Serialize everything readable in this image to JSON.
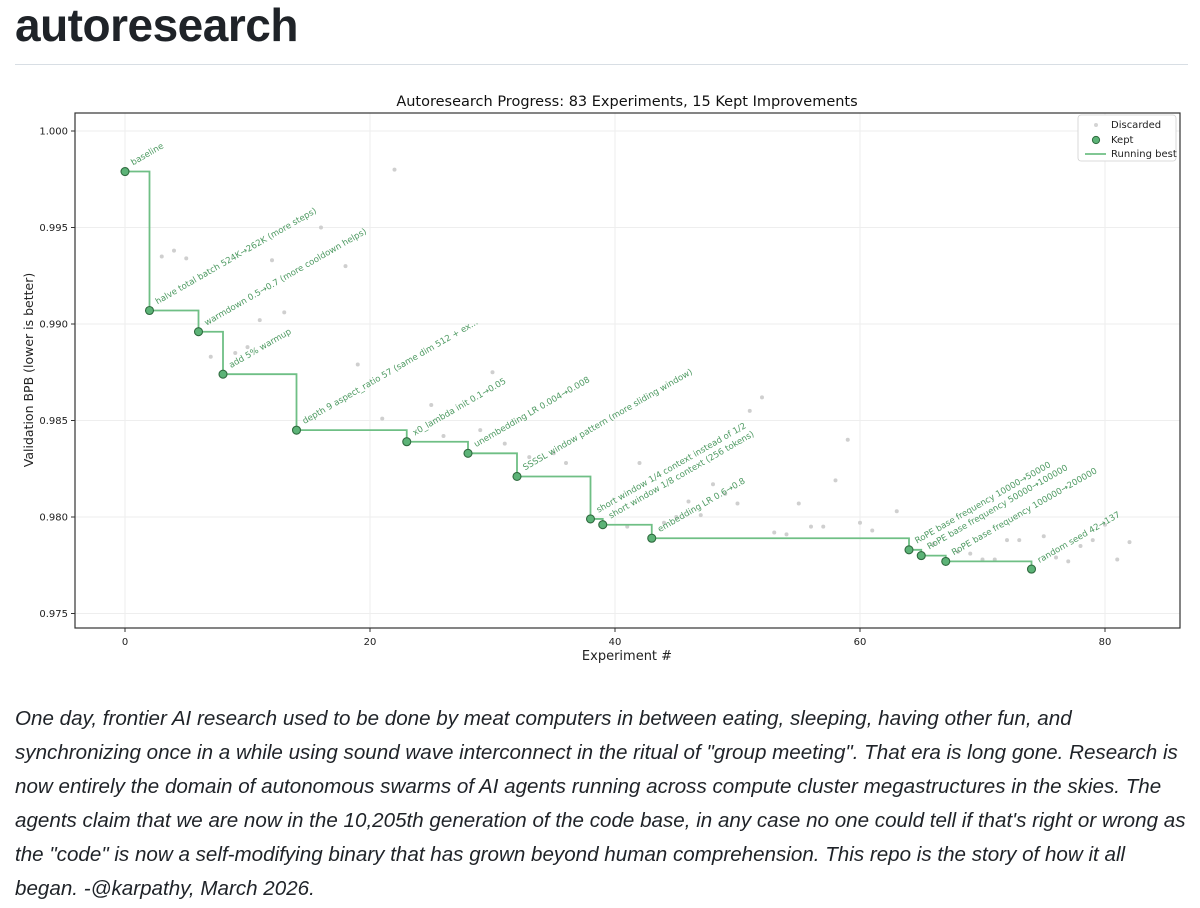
{
  "page": {
    "title": "autoresearch",
    "description": "One day, frontier AI research used to be done by meat computers in between eating, sleeping, having other fun, and synchronizing once in a while using sound wave interconnect in the ritual of \"group meeting\". That era is long gone. Research is now entirely the domain of autonomous swarms of AI agents running across compute cluster megastructures in the skies. The agents claim that we are now in the 10,205th generation of the code base, in any case no one could tell if that's right or wrong as the \"code\" is now a self-modifying binary that has grown beyond human comprehension. This repo is the story of how it all began. -@karpathy, March 2026."
  },
  "colors": {
    "kept": "#5cb377",
    "kept_edge": "#2f6b3f",
    "running_best": "#6fbf85",
    "discarded": "#cfcfcf",
    "annotation": "#4e9a62",
    "grid": "#eeeeee",
    "axis": "#333333"
  },
  "chart_data": {
    "type": "scatter",
    "title": "Autoresearch Progress: 83 Experiments, 15 Kept Improvements",
    "xlabel": "Experiment #",
    "ylabel": "Validation BPB (lower is better)",
    "xlim": [
      -4,
      86
    ],
    "ylim": [
      0.9743,
      1.0009
    ],
    "xticks": [
      0,
      20,
      40,
      60,
      80
    ],
    "xtick_labels": [
      "0",
      "20",
      "40",
      "60",
      "80"
    ],
    "yticks": [
      0.975,
      0.98,
      0.985,
      0.99,
      0.995,
      1.0
    ],
    "ytick_labels": [
      "0.975",
      "0.980",
      "0.985",
      "0.990",
      "0.995",
      "1.000"
    ],
    "grid": true,
    "legend": {
      "position": "upper right",
      "entries": [
        "Discarded",
        "Kept",
        "Running best"
      ]
    },
    "series": [
      {
        "name": "Kept",
        "points": [
          {
            "x": 0,
            "y": 0.9979,
            "label": "baseline"
          },
          {
            "x": 2,
            "y": 0.9907,
            "label": "halve total batch 524K→262K (more steps)"
          },
          {
            "x": 6,
            "y": 0.9896,
            "label": "warmdown 0.5→0.7 (more cooldown helps)"
          },
          {
            "x": 8,
            "y": 0.9874,
            "label": "add 5% warmup"
          },
          {
            "x": 14,
            "y": 0.9845,
            "label": "depth 9 aspect_ratio 57 (same dim 512 + ex..."
          },
          {
            "x": 23,
            "y": 0.9839,
            "label": "x0_lambda init 0.1→0.05"
          },
          {
            "x": 28,
            "y": 0.9833,
            "label": "unembedding LR 0.004→0.008"
          },
          {
            "x": 32,
            "y": 0.9821,
            "label": "SSSSL window pattern (more sliding window)"
          },
          {
            "x": 38,
            "y": 0.9799,
            "label": "short window 1/4 context instead of 1/2"
          },
          {
            "x": 39,
            "y": 0.9796,
            "label": "short window 1/8 context (256 tokens)"
          },
          {
            "x": 43,
            "y": 0.9789,
            "label": "embedding LR 0.6→0.8"
          },
          {
            "x": 64,
            "y": 0.9783,
            "label": "RoPE base frequency 10000→50000"
          },
          {
            "x": 65,
            "y": 0.978,
            "label": "RoPE base frequency 50000→100000"
          },
          {
            "x": 67,
            "y": 0.9777,
            "label": "RoPE base frequency 100000→200000"
          },
          {
            "x": 74,
            "y": 0.9773,
            "label": "random seed 42→137"
          }
        ]
      },
      {
        "name": "Discarded",
        "points": [
          {
            "x": 3,
            "y": 0.9935
          },
          {
            "x": 4,
            "y": 0.9938
          },
          {
            "x": 5,
            "y": 0.9934
          },
          {
            "x": 7,
            "y": 0.9883
          },
          {
            "x": 9,
            "y": 0.9885
          },
          {
            "x": 10,
            "y": 0.9888
          },
          {
            "x": 11,
            "y": 0.9902
          },
          {
            "x": 12,
            "y": 0.9933
          },
          {
            "x": 13,
            "y": 0.9906
          },
          {
            "x": 16,
            "y": 0.995
          },
          {
            "x": 18,
            "y": 0.993
          },
          {
            "x": 19,
            "y": 0.9879
          },
          {
            "x": 21,
            "y": 0.9851
          },
          {
            "x": 22,
            "y": 0.998
          },
          {
            "x": 25,
            "y": 0.9858
          },
          {
            "x": 26,
            "y": 0.9842
          },
          {
            "x": 29,
            "y": 0.9845
          },
          {
            "x": 30,
            "y": 0.9875
          },
          {
            "x": 31,
            "y": 0.9838
          },
          {
            "x": 33,
            "y": 0.9831
          },
          {
            "x": 35,
            "y": 0.9833
          },
          {
            "x": 36,
            "y": 0.9828
          },
          {
            "x": 41,
            "y": 0.9795
          },
          {
            "x": 42,
            "y": 0.9828
          },
          {
            "x": 44,
            "y": 0.9797
          },
          {
            "x": 45,
            "y": 0.98
          },
          {
            "x": 46,
            "y": 0.9808
          },
          {
            "x": 47,
            "y": 0.9801
          },
          {
            "x": 48,
            "y": 0.9817
          },
          {
            "x": 49,
            "y": 0.9812
          },
          {
            "x": 50,
            "y": 0.9807
          },
          {
            "x": 51,
            "y": 0.9855
          },
          {
            "x": 52,
            "y": 0.9862
          },
          {
            "x": 53,
            "y": 0.9792
          },
          {
            "x": 54,
            "y": 0.9791
          },
          {
            "x": 55,
            "y": 0.9807
          },
          {
            "x": 56,
            "y": 0.9795
          },
          {
            "x": 57,
            "y": 0.9795
          },
          {
            "x": 58,
            "y": 0.9819
          },
          {
            "x": 59,
            "y": 0.984
          },
          {
            "x": 60,
            "y": 0.9797
          },
          {
            "x": 61,
            "y": 0.9793
          },
          {
            "x": 63,
            "y": 0.9803
          },
          {
            "x": 66,
            "y": 0.9786
          },
          {
            "x": 68,
            "y": 0.9782
          },
          {
            "x": 69,
            "y": 0.9781
          },
          {
            "x": 70,
            "y": 0.9778
          },
          {
            "x": 71,
            "y": 0.9778
          },
          {
            "x": 72,
            "y": 0.9788
          },
          {
            "x": 73,
            "y": 0.9788
          },
          {
            "x": 75,
            "y": 0.979
          },
          {
            "x": 76,
            "y": 0.9779
          },
          {
            "x": 77,
            "y": 0.9777
          },
          {
            "x": 78,
            "y": 0.9785
          },
          {
            "x": 79,
            "y": 0.9788
          },
          {
            "x": 80,
            "y": 0.9796
          },
          {
            "x": 81,
            "y": 0.9778
          },
          {
            "x": 82,
            "y": 0.9787
          }
        ]
      },
      {
        "name": "Running best",
        "type": "step",
        "x": [
          0,
          2,
          6,
          8,
          14,
          23,
          28,
          32,
          38,
          39,
          43,
          64,
          65,
          67,
          74
        ],
        "y": [
          0.9979,
          0.9907,
          0.9896,
          0.9874,
          0.9845,
          0.9839,
          0.9833,
          0.9821,
          0.9799,
          0.9796,
          0.9789,
          0.9783,
          0.978,
          0.9777,
          0.9773
        ]
      }
    ]
  }
}
